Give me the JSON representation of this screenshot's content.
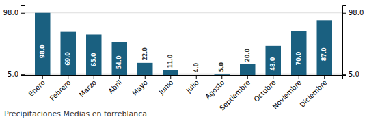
{
  "chart_data": {
    "type": "bar",
    "title": "Precipitaciones Medias en torreblanca",
    "categories": [
      "Enero",
      "Febrero",
      "Marzo",
      "Abril",
      "Mayo",
      "Junio",
      "Julio",
      "Agosto",
      "Septiembre",
      "Octubre",
      "Noviembre",
      "Diciembre"
    ],
    "values": [
      98.0,
      69.0,
      65.0,
      54.0,
      22.0,
      11.0,
      4.0,
      5.0,
      20.0,
      48.0,
      70.0,
      87.0
    ],
    "value_labels": [
      "98.0",
      "69.0",
      "65.0",
      "54.0",
      "22.0",
      "11.0",
      "4.0",
      "5.0",
      "20.0",
      "48.0",
      "70.0",
      "87.0"
    ],
    "data_labels": true,
    "color": "#1a6080",
    "ylim": [
      3.14,
      109.16
    ],
    "yticks": [
      {
        "value": 5.0,
        "label": "5.0"
      },
      {
        "value": 98.0,
        "label": "98.0"
      }
    ],
    "y2lim": [
      3.14,
      109.16
    ],
    "y2ticks": [
      {
        "value": 5.0,
        "label": "5.0"
      },
      {
        "value": 98.0,
        "label": "98.0"
      }
    ],
    "grid": true
  }
}
